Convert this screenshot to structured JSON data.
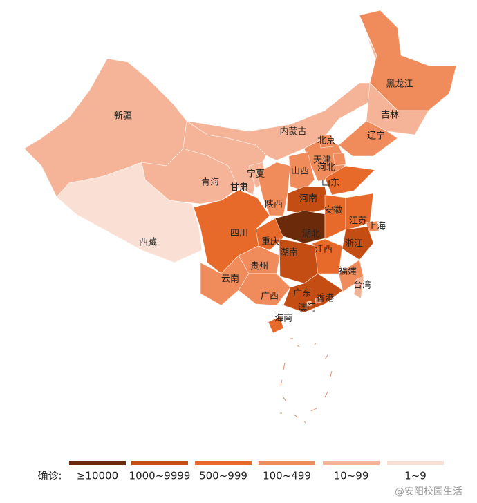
{
  "map": {
    "regions": [
      {
        "name": "新疆",
        "color": "#f5b497"
      },
      {
        "name": "西藏",
        "color": "#fae0d4"
      },
      {
        "name": "青海",
        "color": "#f5b497"
      },
      {
        "name": "甘肃",
        "color": "#f5b497"
      },
      {
        "name": "内蒙古",
        "color": "#f5b497"
      },
      {
        "name": "黑龙江",
        "color": "#f08c5c"
      },
      {
        "name": "吉林",
        "color": "#f5b497"
      },
      {
        "name": "辽宁",
        "color": "#f08c5c"
      },
      {
        "name": "河北",
        "color": "#f08c5c"
      },
      {
        "name": "北京",
        "color": "#f08c5c"
      },
      {
        "name": "天津",
        "color": "#f08c5c"
      },
      {
        "name": "山西",
        "color": "#f08c5c"
      },
      {
        "name": "山东",
        "color": "#e86a2a"
      },
      {
        "name": "宁夏",
        "color": "#f5b497"
      },
      {
        "name": "陕西",
        "color": "#f08c5c"
      },
      {
        "name": "河南",
        "color": "#c44d14"
      },
      {
        "name": "湖北",
        "color": "#6b2a0a"
      },
      {
        "name": "重庆",
        "color": "#e86a2a"
      },
      {
        "name": "四川",
        "color": "#e86a2a"
      },
      {
        "name": "安徽",
        "color": "#e86a2a"
      },
      {
        "name": "江苏",
        "color": "#e86a2a"
      },
      {
        "name": "上海",
        "color": "#f08c5c"
      },
      {
        "name": "浙江",
        "color": "#c44d14"
      },
      {
        "name": "江西",
        "color": "#e86a2a"
      },
      {
        "name": "湖南",
        "color": "#c44d14"
      },
      {
        "name": "贵州",
        "color": "#f08c5c"
      },
      {
        "name": "云南",
        "color": "#f08c5c"
      },
      {
        "name": "广西",
        "color": "#f08c5c"
      },
      {
        "name": "福建",
        "color": "#f08c5c"
      },
      {
        "name": "广东",
        "color": "#c44d14"
      },
      {
        "name": "香港",
        "color": "#f08c5c"
      },
      {
        "name": "澳门",
        "color": "#f5b497"
      },
      {
        "name": "海南",
        "color": "#e86a2a"
      },
      {
        "name": "台湾",
        "color": "#f5b497"
      }
    ]
  },
  "legend": {
    "title": "确诊:",
    "items": [
      {
        "label": "≥10000",
        "color": "#6b2a0a"
      },
      {
        "label": "1000~9999",
        "color": "#c44d14"
      },
      {
        "label": "500~999",
        "color": "#e86a2a"
      },
      {
        "label": "100~499",
        "color": "#f08c5c"
      },
      {
        "label": "10~99",
        "color": "#f5b497"
      },
      {
        "label": "1~9",
        "color": "#fae0d4"
      }
    ]
  },
  "watermark": "@安阳校园生活"
}
